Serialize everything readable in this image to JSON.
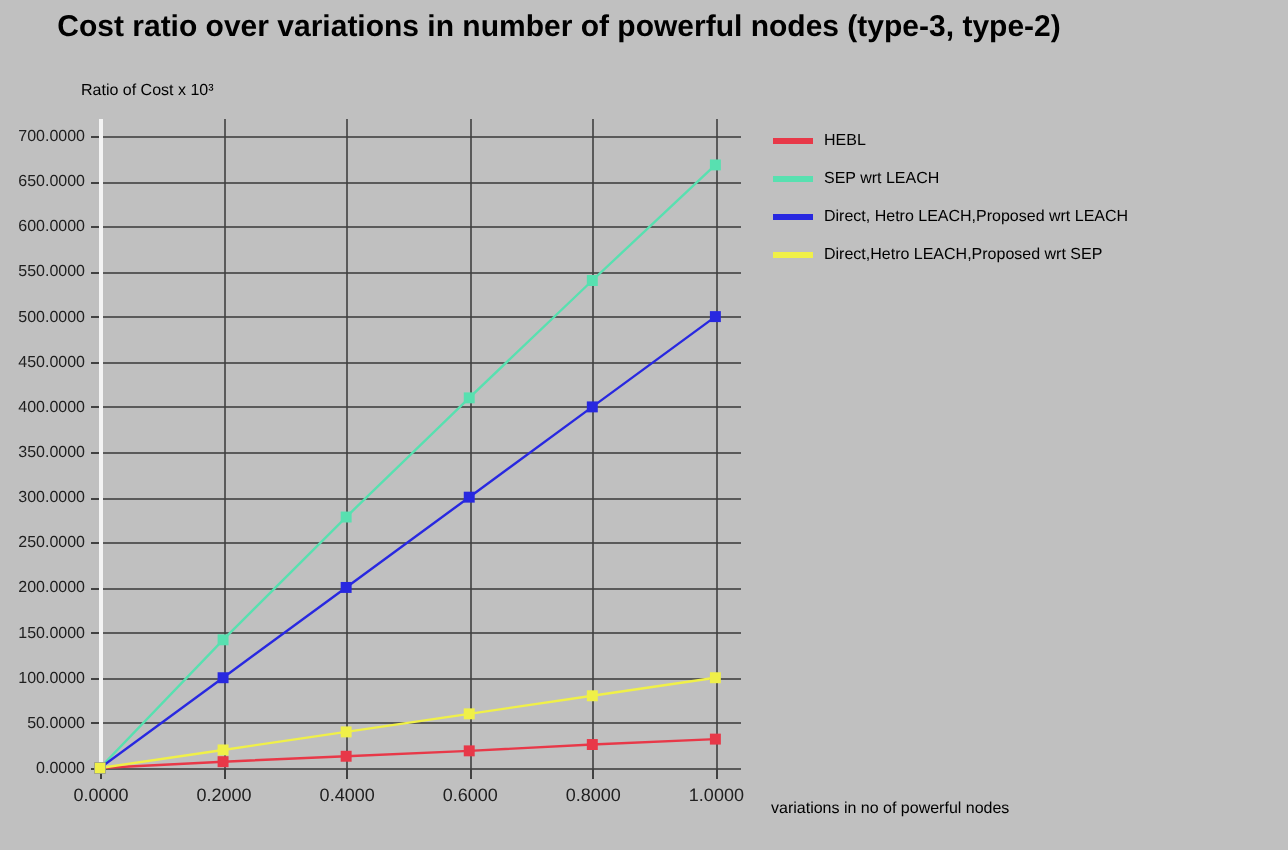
{
  "chart_data": {
    "type": "line",
    "title": "Cost ratio over variations in number of powerful nodes (type-3, type-2)",
    "ylabel": "Ratio of Cost x 10³",
    "xlabel": "variations in no of powerful nodes",
    "x": [
      0,
      0.2,
      0.4,
      0.6,
      0.8,
      1.0
    ],
    "series": [
      {
        "name": "HEBL",
        "color": "#e83848",
        "values": [
          0,
          7,
          13,
          19,
          26,
          32
        ]
      },
      {
        "name": "SEP wrt LEACH",
        "color": "#58e0b0",
        "values": [
          0,
          142,
          278,
          410,
          540,
          668
        ]
      },
      {
        "name": "Direct, Hetro LEACH,Proposed wrt LEACH",
        "color": "#2828e0",
        "values": [
          0,
          100,
          200,
          300,
          400,
          500
        ]
      },
      {
        "name": "Direct,Hetro LEACH,Proposed wrt SEP",
        "color": "#f0f048",
        "values": [
          0,
          20,
          40,
          60,
          80,
          100
        ]
      }
    ],
    "xlim": [
      0,
      1.04
    ],
    "xticks": [
      {
        "value": 0,
        "label": "0.0000"
      },
      {
        "value": 0.2,
        "label": "0.2000"
      },
      {
        "value": 0.4,
        "label": "0.4000"
      },
      {
        "value": 0.6,
        "label": "0.6000"
      },
      {
        "value": 0.8,
        "label": "0.8000"
      },
      {
        "value": 1,
        "label": "1.0000"
      }
    ],
    "ylim": [
      0,
      720
    ],
    "yticks": [
      {
        "value": 0,
        "label": "0.0000"
      },
      {
        "value": 50,
        "label": "50.0000"
      },
      {
        "value": 100,
        "label": "100.0000"
      },
      {
        "value": 150,
        "label": "150.0000"
      },
      {
        "value": 200,
        "label": "200.0000"
      },
      {
        "value": 250,
        "label": "250.0000"
      },
      {
        "value": 300,
        "label": "300.0000"
      },
      {
        "value": 350,
        "label": "350.0000"
      },
      {
        "value": 400,
        "label": "400.0000"
      },
      {
        "value": 450,
        "label": "450.0000"
      },
      {
        "value": 500,
        "label": "500.0000"
      },
      {
        "value": 550,
        "label": "550.0000"
      },
      {
        "value": 600,
        "label": "600.0000"
      },
      {
        "value": 650,
        "label": "650.0000"
      },
      {
        "value": 700,
        "label": "700.0000"
      }
    ],
    "grid": true,
    "legend": "right",
    "marker": "square",
    "line_style": "solid"
  }
}
